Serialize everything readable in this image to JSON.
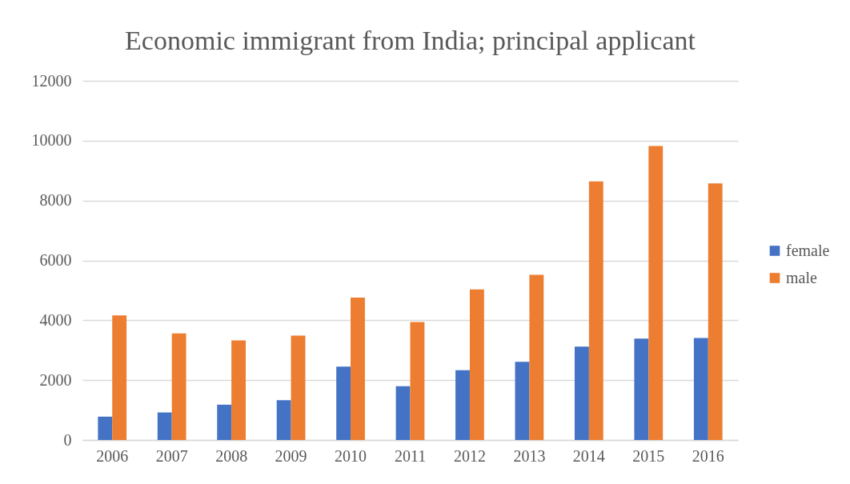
{
  "chart_data": {
    "type": "bar",
    "title": "Economic immigrant from India; principal applicant",
    "categories": [
      "2006",
      "2007",
      "2008",
      "2009",
      "2010",
      "2011",
      "2012",
      "2013",
      "2014",
      "2015",
      "2016"
    ],
    "series": [
      {
        "name": "female",
        "color": "#4472c4",
        "values": [
          780,
          920,
          1180,
          1330,
          2450,
          1800,
          2330,
          2610,
          3120,
          3390,
          3410
        ]
      },
      {
        "name": "male",
        "color": "#ed7d31",
        "values": [
          4160,
          3560,
          3330,
          3490,
          4760,
          3940,
          5030,
          5520,
          8640,
          9820,
          8570
        ]
      }
    ],
    "ylim": [
      0,
      12000
    ],
    "yticks": [
      0,
      2000,
      4000,
      6000,
      8000,
      10000,
      12000
    ],
    "grid": "y",
    "legend": "right"
  }
}
